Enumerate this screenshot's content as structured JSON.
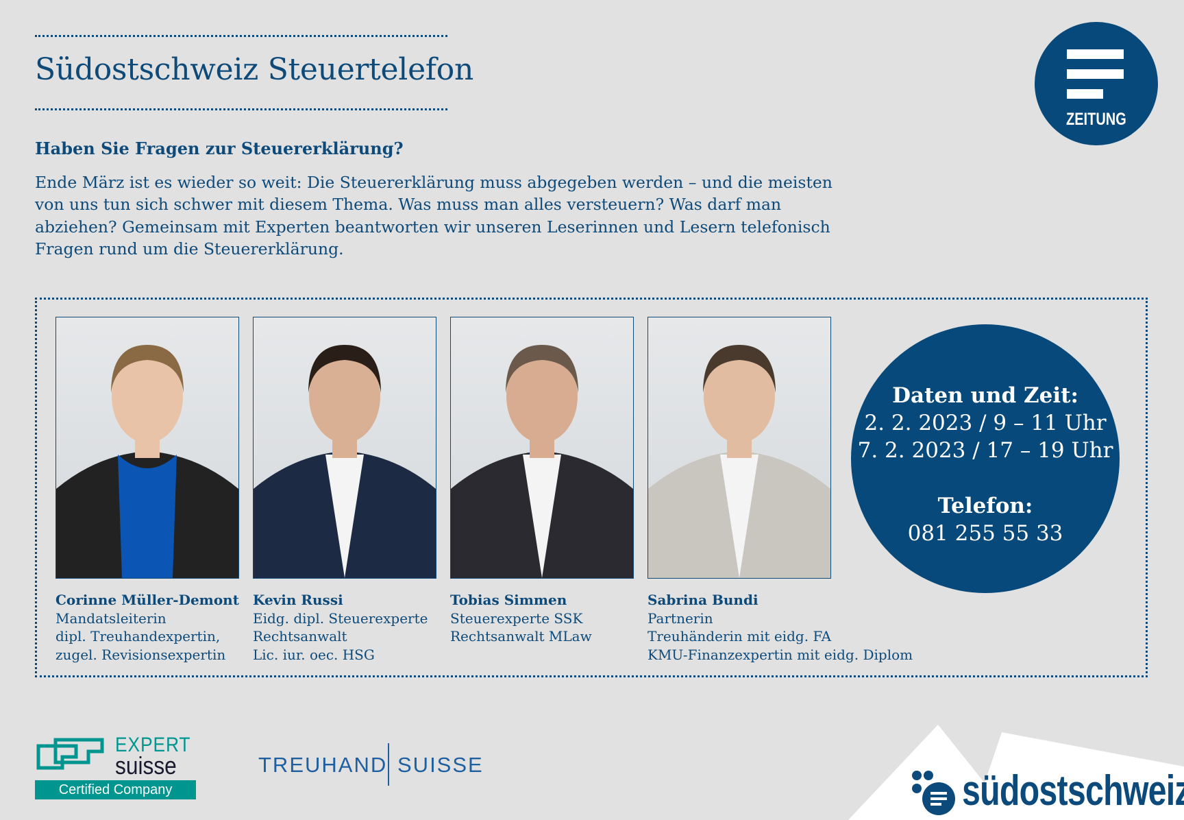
{
  "header": {
    "title": "Südostschweiz Steuertelefon",
    "subheading": "Haben Sie Fragen zur Steuererklärung?",
    "intro": "Ende März ist es wieder so weit: Die Steuererklärung muss abgegeben werden – und die meisten von uns tun sich schwer mit diesem Thema. Was muss man alles versteuern? Was darf man abziehen? Gemeinsam mit Experten beantworten wir unseren Leserinnen und Lesern telefonisch Fragen rund um die Steuererklärung."
  },
  "badge": {
    "label": "ZEITUNG",
    "icon": "newspaper-lines-icon"
  },
  "experts": [
    {
      "name": "Corinne Müller-Demont",
      "lines": [
        "Mandatsleiterin",
        "dipl. Treuhandexpertin,",
        "zugel. Revisionsexpertin"
      ]
    },
    {
      "name": "Kevin Russi",
      "lines": [
        "Eidg. dipl. Steuerexperte",
        "Rechtsanwalt",
        "Lic. iur. oec. HSG"
      ]
    },
    {
      "name": "Tobias Simmen",
      "lines": [
        "Steuerexperte SSK",
        "Rechtsanwalt MLaw"
      ]
    },
    {
      "name": "Sabrina Bundi",
      "lines": [
        "Partnerin",
        "Treuhänderin mit eidg. FA",
        "KMU-Finanzexpertin mit eidg. Diplom"
      ]
    }
  ],
  "info": {
    "dates_label": "Daten und Zeit:",
    "date1": "2. 2. 2023 / 9 – 11 Uhr",
    "date2": "7. 2. 2023 / 17 – 19 Uhr",
    "phone_label": "Telefon:",
    "phone": "081 255 55 33"
  },
  "logos": {
    "expertsuisse_1": "EXPERT",
    "expertsuisse_2": "suisse",
    "expertsuisse_cert": "Certified Company",
    "treuhand_1": "TREUHAND",
    "treuhand_2": "SUISSE",
    "suedostschweiz": "südostschweiz"
  },
  "colors": {
    "brand_blue": "#06497a",
    "teal": "#00958f",
    "background": "#e1e1e1"
  }
}
